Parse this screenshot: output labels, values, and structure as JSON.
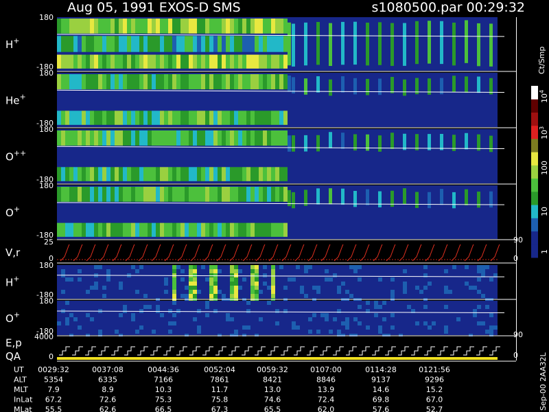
{
  "header": {
    "title": "Aug 05, 1991   EXOS-D SMS",
    "file": "s1080500.par  00:29:32"
  },
  "panels": [
    {
      "label": {
        "base": "H",
        "sup": "+"
      },
      "ticks": [
        "180",
        "-180"
      ]
    },
    {
      "label": {
        "base": "He",
        "sup": "+"
      },
      "ticks": [
        "180",
        "-180"
      ]
    },
    {
      "label": {
        "base": "O",
        "sup": "++"
      },
      "ticks": [
        "180",
        "-180"
      ]
    },
    {
      "label": {
        "base": "O",
        "sup": "+"
      },
      "ticks": [
        "180",
        "-180"
      ]
    },
    {
      "label": {
        "base": "V,r"
      },
      "ticks": [
        "25",
        "0"
      ],
      "right_ticks": [
        "90",
        "0"
      ]
    },
    {
      "label": {
        "base": "H",
        "sup": "+"
      },
      "ticks": [
        "180",
        "-180"
      ]
    },
    {
      "label": {
        "base": "O",
        "sup": "+"
      },
      "ticks": [
        "180",
        "-180"
      ],
      "right_ticks": [
        "90"
      ]
    },
    {
      "label": {
        "base": "E,p"
      },
      "label2": "QA",
      "ticks": [
        "4000",
        "0"
      ],
      "right_ticks": [
        "0"
      ]
    }
  ],
  "colorbar": {
    "unit": "Ct/Smp",
    "labels": [
      {
        "base": "10",
        "sup": "4"
      },
      {
        "base": "10",
        "sup": "3"
      },
      {
        "base": "100"
      },
      {
        "base": "10"
      },
      {
        "base": "1"
      }
    ]
  },
  "footer": {
    "rows": [
      [
        "UT",
        "0029:32",
        "0037:08",
        "0044:36",
        "0052:04",
        "0059:32",
        "0107:00",
        "0114:28",
        "0121:56"
      ],
      [
        "ALT",
        "5354",
        "6335",
        "7166",
        "7861",
        "8421",
        "8846",
        "9137",
        "9296"
      ],
      [
        "MLT",
        "7.9",
        "8.9",
        "10.3",
        "11.7",
        "13.0",
        "13.9",
        "14.6",
        "15.2"
      ],
      [
        "InLat",
        "67.2",
        "72.6",
        "75.3",
        "75.8",
        "74.6",
        "72.4",
        "69.8",
        "67.0"
      ],
      [
        "MLat",
        "55.5",
        "62.6",
        "66.5",
        "67.3",
        "65.5",
        "62.0",
        "57.6",
        "52.7"
      ]
    ]
  },
  "stamp": "Sep-00  2AA32L"
}
